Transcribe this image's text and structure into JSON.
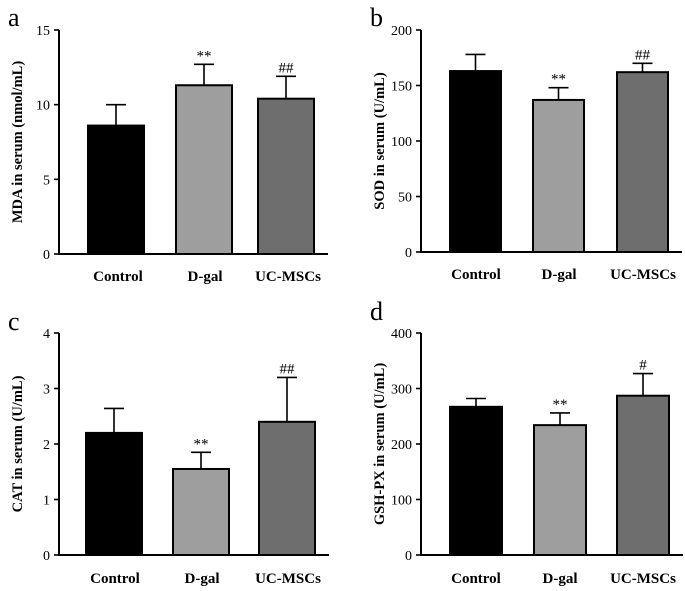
{
  "chart_data": [
    {
      "type": "bar",
      "panel": "a",
      "categories": [
        "Control",
        "D-gal",
        "UC-MSCs"
      ],
      "values": [
        8.6,
        11.3,
        10.4
      ],
      "errors": [
        1.4,
        1.4,
        1.5
      ],
      "annotations": [
        "",
        "**",
        "##"
      ],
      "ylabel": "MDA in serum (nmol/mL)",
      "ylim": [
        0,
        15
      ],
      "yticks": [
        0,
        5,
        10,
        15
      ],
      "colors": [
        "#000000",
        "#9e9e9e",
        "#6e6e6e"
      ]
    },
    {
      "type": "bar",
      "panel": "b",
      "categories": [
        "Control",
        "D-gal",
        "UC-MSCs"
      ],
      "values": [
        163,
        137,
        162
      ],
      "errors": [
        15,
        11,
        8
      ],
      "annotations": [
        "",
        "**",
        "##"
      ],
      "ylabel": "SOD in serum (U/mL)",
      "ylim": [
        0,
        200
      ],
      "yticks": [
        0,
        50,
        100,
        150,
        200
      ],
      "colors": [
        "#000000",
        "#9e9e9e",
        "#6e6e6e"
      ]
    },
    {
      "type": "bar",
      "panel": "c",
      "categories": [
        "Control",
        "D-gal",
        "UC-MSCs"
      ],
      "values": [
        2.2,
        1.55,
        2.4
      ],
      "errors": [
        0.44,
        0.3,
        0.8
      ],
      "annotations": [
        "",
        "**",
        "##"
      ],
      "ylabel": "CAT in serum (U/mL)",
      "ylim": [
        0,
        4
      ],
      "yticks": [
        0,
        1,
        2,
        3,
        4
      ],
      "colors": [
        "#000000",
        "#9e9e9e",
        "#6e6e6e"
      ]
    },
    {
      "type": "bar",
      "panel": "d",
      "categories": [
        "Control",
        "D-gal",
        "UC-MSCs"
      ],
      "values": [
        267,
        234,
        287
      ],
      "errors": [
        15,
        22,
        40
      ],
      "annotations": [
        "",
        "**",
        "#"
      ],
      "ylabel": "GSH-PX in serum (U/mL)",
      "ylim": [
        0,
        400
      ],
      "yticks": [
        0,
        100,
        200,
        300,
        400
      ],
      "colors": [
        "#000000",
        "#9e9e9e",
        "#6e6e6e"
      ]
    }
  ]
}
